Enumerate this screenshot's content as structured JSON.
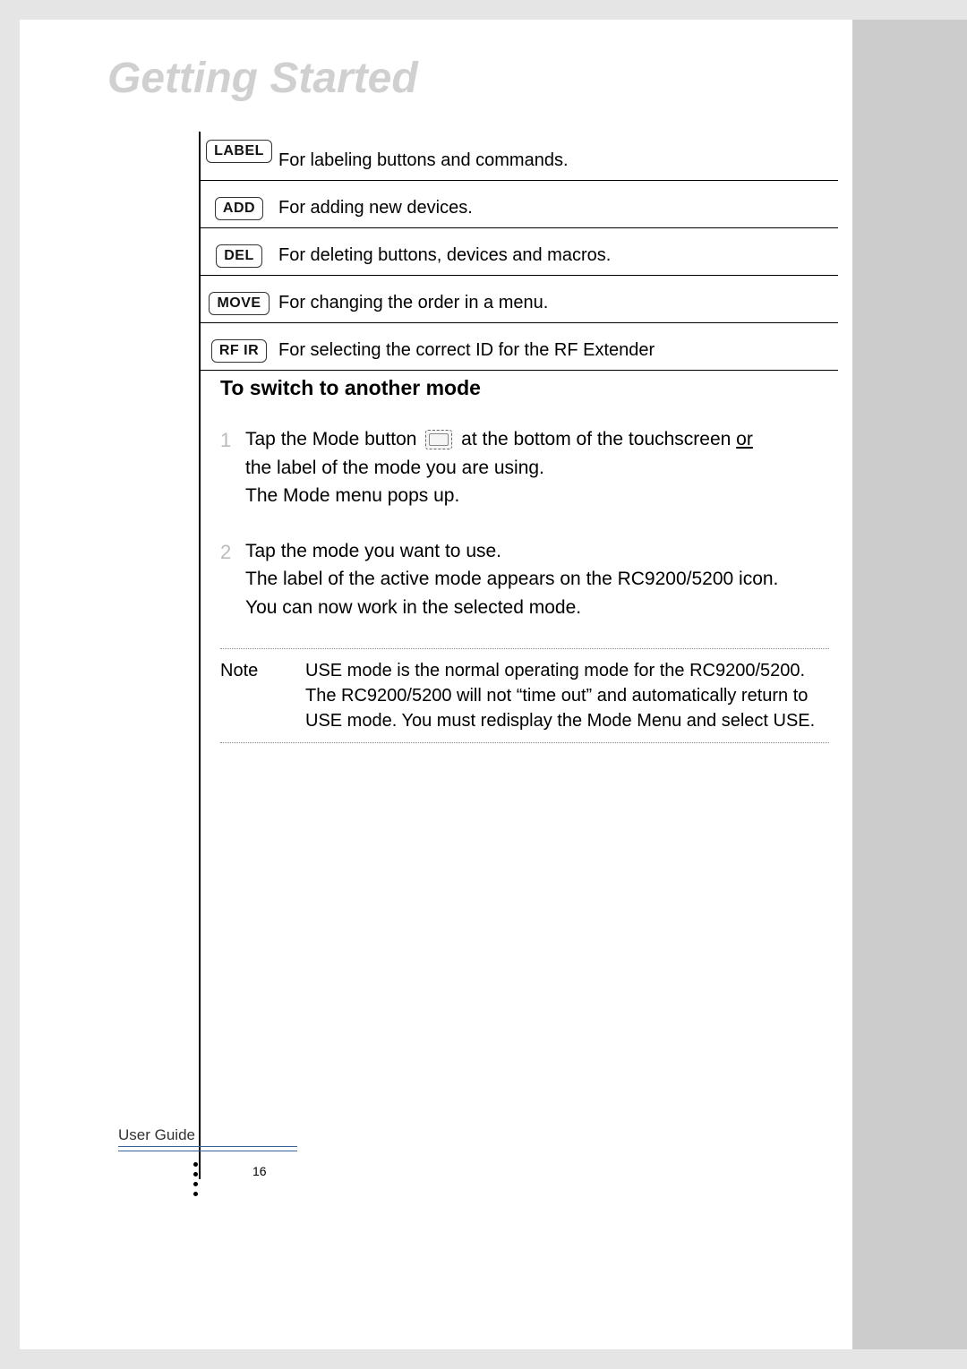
{
  "header": {
    "title": "Getting Started"
  },
  "modes": [
    {
      "label": "LABEL",
      "desc": "For labeling buttons and commands."
    },
    {
      "label": "ADD",
      "desc": "For adding new devices."
    },
    {
      "label": "DEL",
      "desc": "For deleting buttons, devices and macros."
    },
    {
      "label": "MOVE",
      "desc": "For changing the order in a menu."
    },
    {
      "label": "RF IR",
      "desc": "For selecting the correct ID for the RF Extender"
    }
  ],
  "section": {
    "heading": "To switch to another mode",
    "step1": {
      "num": "1",
      "text_a": "Tap the Mode button ",
      "text_b": " at the bottom of the touchscreen ",
      "text_or": "or",
      "text_c": "the label of the mode you are using.",
      "text_d": "The Mode menu pops up."
    },
    "step2": {
      "num": "2",
      "line1": "Tap the mode you want to use.",
      "line2": "The label of the active mode appears on the RC9200/5200 icon.",
      "line3": "You can now work in the selected mode."
    },
    "note": {
      "label": "Note",
      "body": "USE  mode is the normal operating mode for  the RC9200/5200. The RC9200/5200 will not “time out” and automatically return to USE mode. You must redisplay the Mode Menu and select USE."
    }
  },
  "footer": {
    "guide": "User Guide",
    "page": "16"
  },
  "colors": {
    "page_bg": "#ffffff",
    "outer_bg": "#e5e5e5",
    "sidebar_bg": "#cccccc",
    "title_color": "#d0d0d0",
    "footer_line": "#3a5f9f"
  }
}
